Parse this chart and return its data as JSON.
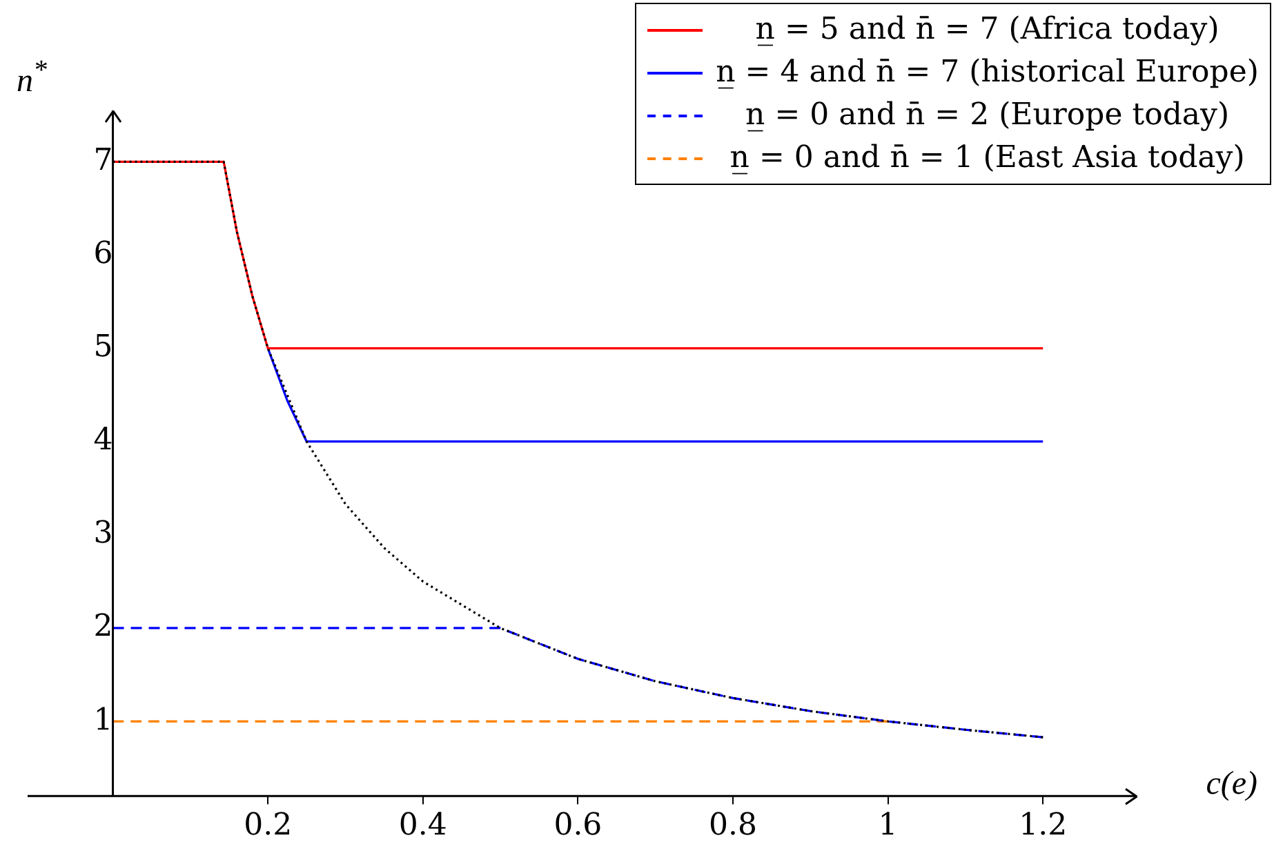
{
  "chart_data": {
    "type": "line",
    "xlabel": "c(e)",
    "ylabel": "n$^{*}$",
    "xlim": [
      -0.11,
      1.32
    ],
    "ylim": [
      0.2,
      7.55
    ],
    "xticks": [
      0.2,
      0.4,
      0.6,
      0.8,
      1,
      1.2
    ],
    "yticks": [
      1,
      2,
      3,
      4,
      5,
      6,
      7
    ],
    "grid": false,
    "legend": "top right",
    "marker": "none",
    "series": [
      {
        "color": "#000000",
        "line_style": "dotted",
        "x": [
          0,
          0.143,
          0.16,
          0.18,
          0.2,
          0.25,
          0.3,
          0.35,
          0.4,
          0.5,
          0.6,
          0.7,
          0.8,
          0.9,
          1,
          1.1,
          1.2
        ],
        "values": [
          7,
          7,
          6.25,
          5.56,
          5,
          4,
          3.33,
          2.86,
          2.5,
          2,
          1.67,
          1.43,
          1.25,
          1.11,
          1,
          0.91,
          0.83
        ]
      },
      {
        "name": "n̲ = 5 and n̄ = 7 (Africa today)",
        "color": "#ff0000",
        "line_style": "solid",
        "x": [
          0,
          0.143,
          0.16,
          0.18,
          0.2,
          1.2
        ],
        "values": [
          7,
          7,
          6.25,
          5.56,
          5,
          5
        ]
      },
      {
        "name": "n̲ = 4 and n̄ = 7 (historical Europe)",
        "color": "#0000ff",
        "line_style": "solid",
        "x": [
          0.2,
          0.225,
          0.25,
          1.2
        ],
        "values": [
          5,
          4.44,
          4,
          4
        ]
      },
      {
        "name": "n̲ = 0 and n̄ = 2 (Europe today)",
        "color": "#0000ff",
        "line_style": "dashed",
        "x": [
          0,
          0.5,
          0.6,
          0.7,
          0.8,
          0.9,
          1,
          1.1,
          1.2
        ],
        "values": [
          2,
          2,
          1.67,
          1.43,
          1.25,
          1.11,
          1,
          0.91,
          0.83
        ]
      },
      {
        "name": "n̲ = 0 and n̄ = 1 (East Asia today)",
        "color": "#ff8000",
        "line_style": "dashed",
        "x": [
          0,
          1
        ],
        "values": [
          1,
          1
        ]
      }
    ]
  }
}
